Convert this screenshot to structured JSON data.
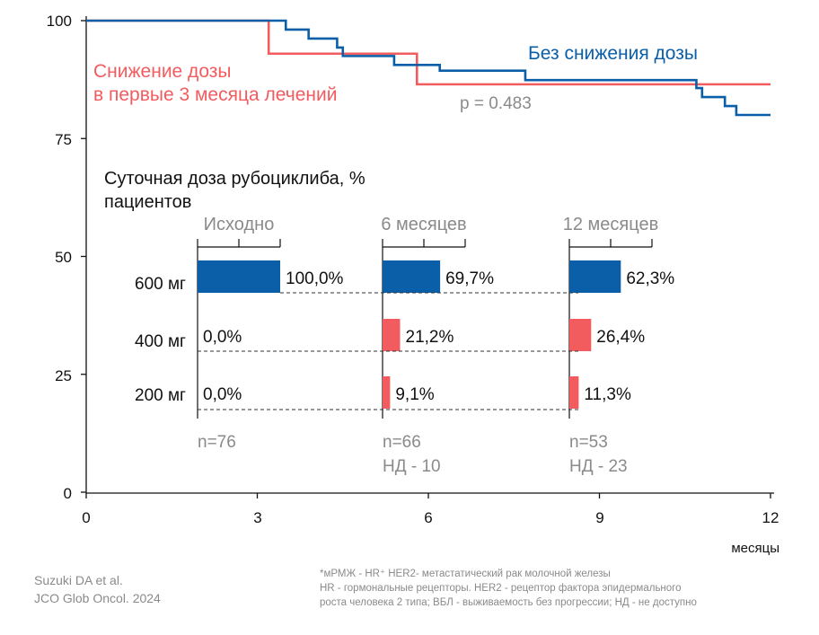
{
  "colors": {
    "blue": "#0a5fa8",
    "red": "#f25c5f",
    "gray": "#8a8a8a"
  },
  "chart_data": [
    {
      "type": "line",
      "subtype": "kaplan-meier step",
      "xlabel": "месяцы",
      "xlim": [
        0,
        12
      ],
      "ylim": [
        0,
        100
      ],
      "xticks": [
        "0",
        "3",
        "6",
        "9",
        "12"
      ],
      "yticks": [
        "0",
        "25",
        "50",
        "75",
        "100"
      ],
      "grid": false,
      "annotation": "p = 0.483",
      "series": [
        {
          "name": "Без снижения дозы",
          "color": "#0a5fa8",
          "x": [
            0,
            3.5,
            3.9,
            4.4,
            4.5,
            5.4,
            6.2,
            7.7,
            10.7,
            10.8,
            11.2,
            11.4,
            12
          ],
          "y": [
            100,
            98.1,
            96.2,
            94.3,
            92.5,
            90.6,
            89.4,
            87.4,
            85.7,
            83.8,
            81.9,
            80.0,
            80.0
          ]
        },
        {
          "name": "Снижение дозы\nв первые 3 месяца лечений",
          "color": "#f25c5f",
          "x": [
            0,
            3.2,
            5.8,
            12
          ],
          "y": [
            100,
            93.0,
            86.5,
            86.5
          ]
        }
      ]
    },
    {
      "type": "bar",
      "orientation": "horizontal",
      "title": "Суточная доза рубоциклиба, % пациентов",
      "categories": [
        "600 мг",
        "400 мг",
        "200 мг"
      ],
      "groups": [
        {
          "label": "Исходно",
          "values": [
            100.0,
            0.0,
            0.0
          ],
          "labels": [
            "100,0%",
            "0,0%",
            "0,0%"
          ],
          "n": "n=76",
          "nd": ""
        },
        {
          "label": "6 месяцев",
          "values": [
            69.7,
            21.2,
            9.1
          ],
          "labels": [
            "69,7%",
            "21,2%",
            "9,1%"
          ],
          "n": "n=66",
          "nd": "НД - 10"
        },
        {
          "label": "12 месяцев",
          "values": [
            62.3,
            26.4,
            11.3
          ],
          "labels": [
            "62,3%",
            "26,4%",
            "11,3%"
          ],
          "n": "n=53",
          "nd": "НД - 23"
        }
      ],
      "bar_colors": [
        "#0a5fa8",
        "#f25c5f",
        "#f25c5f"
      ]
    }
  ],
  "labels": {
    "blue_series": "Без снижения дозы",
    "red_series_line1": "Снижение дозы",
    "red_series_line2": "в первые 3 месяца лечений",
    "pvalue": "p = 0.483",
    "inset_title_line1": "Суточная доза рубоциклиба, %",
    "inset_title_line2": "пациентов",
    "xlabel": "месяцы"
  },
  "source": {
    "line1": "Suzuki DA et al.",
    "line2": "JCO Glob Oncol. 2024"
  },
  "footnote": {
    "line1": "*мРМЖ - HR⁺ HER2- метастатический рак молочной железы",
    "line2": "HR - гормональные рецепторы. HER2 - рецептор фактора эпидермального",
    "line3": "роста человека 2 типа; ВБЛ - выживаемость без прогрессии; НД - не доступно"
  }
}
